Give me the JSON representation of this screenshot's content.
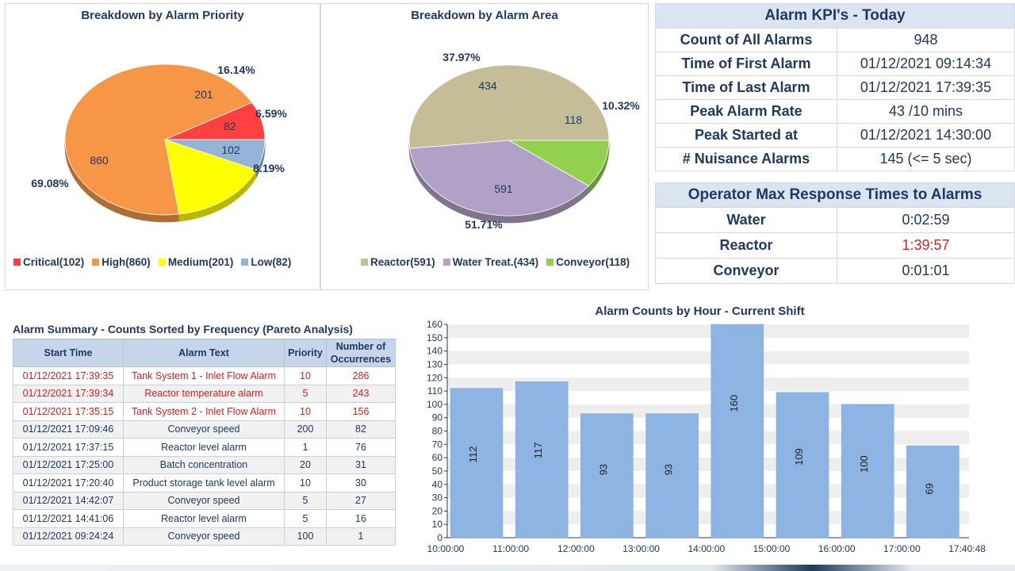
{
  "priority_chart": {
    "title": "Breakdown by Alarm Priority",
    "legend": [
      {
        "label": "Critical(102)",
        "color": "#ff4040"
      },
      {
        "label": "High(860)",
        "color": "#f79646"
      },
      {
        "label": "Medium(201)",
        "color": "#ffff00"
      },
      {
        "label": "Low(82)",
        "color": "#95b3d7"
      }
    ]
  },
  "area_chart": {
    "title": "Breakdown by Alarm Area",
    "legend": [
      {
        "label": "Reactor(591)",
        "color": "#c4bd97"
      },
      {
        "label": "Water Treat.(434)",
        "color": "#b2a1c7"
      },
      {
        "label": "Conveyor(118)",
        "color": "#92d050"
      }
    ]
  },
  "kpi": {
    "title": "Alarm KPI's - Today",
    "rows": [
      {
        "label": "Count of All Alarms",
        "value": "948"
      },
      {
        "label": "Time of First Alarm",
        "value": "01/12/2021 09:14:34"
      },
      {
        "label": "Time of Last Alarm",
        "value": "01/12/2021 17:39:35"
      },
      {
        "label": "Peak Alarm Rate",
        "value": "43 /10 mins"
      },
      {
        "label": "Peak Started at",
        "value": "01/12/2021 14:30:00"
      },
      {
        "label": "# Nuisance Alarms",
        "value": "145 (<= 5 sec)"
      }
    ]
  },
  "response": {
    "title": "Operator Max Response Times to Alarms",
    "rows": [
      {
        "label": "Water",
        "value": "0:02:59"
      },
      {
        "label": "Reactor",
        "value": "1:39:57"
      },
      {
        "label": "Conveyor",
        "value": "0:01:01"
      }
    ]
  },
  "summary": {
    "title": "Alarm Summary - Counts Sorted by Frequency (Pareto Analysis)",
    "headers": [
      "Start Time",
      "Alarm Text",
      "Priority",
      "Number of Occurrences"
    ],
    "rows": [
      [
        "01/12/2021 17:39:35",
        "Tank System 1 - Inlet Flow Alarm",
        "10",
        "286"
      ],
      [
        "01/12/2021 17:39:34",
        "Reactor temperature alarm",
        "5",
        "243"
      ],
      [
        "01/12/2021 17:35:15",
        "Tank System 2 - Inlet Flow Alarm",
        "10",
        "156"
      ],
      [
        "01/12/2021 17:09:46",
        "Conveyor speed",
        "200",
        "82"
      ],
      [
        "01/12/2021 17:37:15",
        "Reactor level alarm",
        "1",
        "76"
      ],
      [
        "01/12/2021 17:25:00",
        "Batch concentration",
        "20",
        "31"
      ],
      [
        "01/12/2021 17:20:40",
        "Product storage tank level alarm",
        "10",
        "30"
      ],
      [
        "01/12/2021 14:42:07",
        "Conveyor speed",
        "5",
        "27"
      ],
      [
        "01/12/2021 14:41:06",
        "Reactor level alarm",
        "5",
        "16"
      ],
      [
        "01/12/2021 09:24:24",
        "Conveyor speed",
        "100",
        "1"
      ]
    ]
  },
  "chart_data": [
    {
      "type": "pie",
      "title": "Breakdown by Alarm Priority",
      "labels": [
        "Critical",
        "High",
        "Medium",
        "Low"
      ],
      "values": [
        102,
        860,
        201,
        82
      ],
      "percent_labels": [
        "8.19%",
        "69.08%",
        "16.14%",
        "6.59%"
      ],
      "colors": [
        "#ff4040",
        "#f79646",
        "#ffff00",
        "#95b3d7"
      ]
    },
    {
      "type": "pie",
      "title": "Breakdown by Alarm Area",
      "labels": [
        "Reactor",
        "Water Treat.",
        "Conveyor"
      ],
      "values": [
        591,
        434,
        118
      ],
      "percent_labels": [
        "51.71%",
        "37.97%",
        "10.32%"
      ],
      "colors": [
        "#c4bd97",
        "#b2a1c7",
        "#92d050"
      ]
    },
    {
      "type": "bar",
      "title": "Alarm Counts by Hour - Current Shift",
      "x_ticks": [
        "10:00:00",
        "11:00:00",
        "12:00:00",
        "13:00:00",
        "14:00:00",
        "15:00:00",
        "16:00:00",
        "17:00:00",
        "17:40:48"
      ],
      "values": [
        112,
        117,
        93,
        93,
        160,
        109,
        100,
        69
      ],
      "ylim": [
        0,
        160
      ],
      "y_ticks": [
        0,
        10,
        20,
        30,
        40,
        50,
        60,
        70,
        80,
        90,
        100,
        110,
        120,
        130,
        140,
        150,
        160
      ],
      "bar_color": "#8eb4e3",
      "grid": "alternating bands"
    }
  ]
}
